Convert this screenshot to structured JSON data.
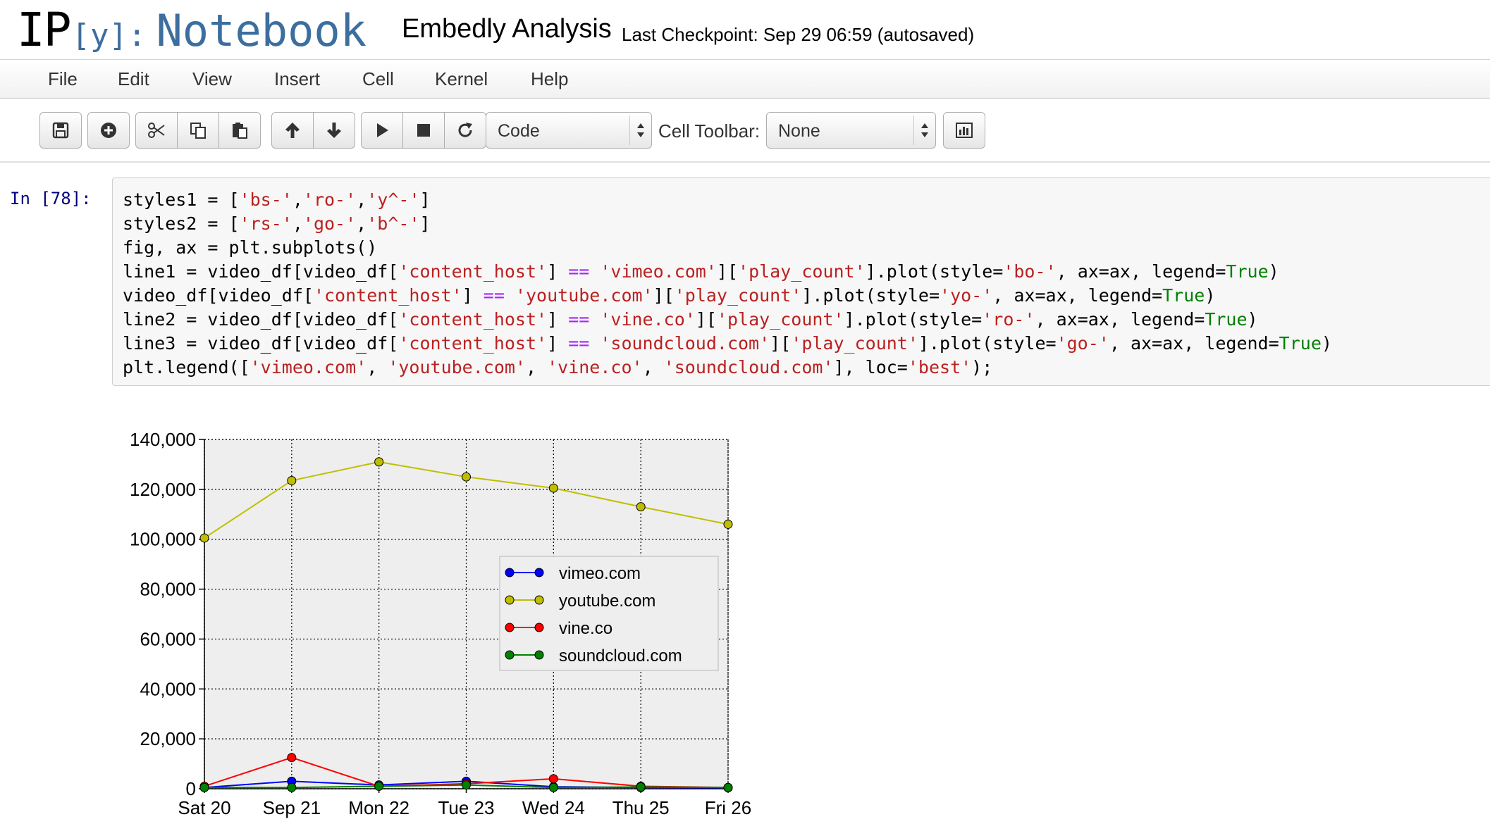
{
  "header": {
    "logo_ip": "IP",
    "logo_y": "[y]:",
    "logo_notebook": "Notebook",
    "notebook_name": "Embedly Analysis",
    "checkpoint": "Last Checkpoint: Sep 29 06:59 (autosaved)"
  },
  "menubar": {
    "items": [
      "File",
      "Edit",
      "View",
      "Insert",
      "Cell",
      "Kernel",
      "Help"
    ]
  },
  "toolbar": {
    "cell_type": "Code",
    "cell_toolbar_label": "Cell Toolbar:",
    "cell_toolbar_value": "None",
    "icons": [
      "save-icon",
      "plus-icon",
      "cut-icon",
      "copy-icon",
      "paste-icon",
      "arrow-up-icon",
      "arrow-down-icon",
      "play-icon",
      "stop-icon",
      "restart-icon",
      "bar-chart-icon"
    ]
  },
  "cell": {
    "prompt": "In [78]:",
    "code_lines": [
      "styles1 = ['bs-','ro-','y^-']",
      "styles2 = ['rs-','go-','b^-']",
      "fig, ax = plt.subplots()",
      "line1 = video_df[video_df['content_host'] == 'vimeo.com']['play_count'].plot(style='bo-', ax=ax, legend=True)",
      "video_df[video_df['content_host'] == 'youtube.com']['play_count'].plot(style='yo-', ax=ax, legend=True)",
      "line2 = video_df[video_df['content_host'] == 'vine.co']['play_count'].plot(style='ro-', ax=ax, legend=True)",
      "line3 = video_df[video_df['content_host'] == 'soundcloud.com']['play_count'].plot(style='go-', ax=ax, legend=True)",
      "plt.legend(['vimeo.com', 'youtube.com', 'vine.co', 'soundcloud.com'], loc='best');"
    ]
  },
  "chart_data": {
    "type": "line",
    "title": "",
    "xlabel": "",
    "ylabel": "",
    "categories": [
      "Sat 20",
      "Sep 21",
      "Mon 22",
      "Tue 23",
      "Wed 24",
      "Thu 25",
      "Fri 26"
    ],
    "yticks": [
      "0",
      "20,000",
      "40,000",
      "60,000",
      "80,000",
      "100,000",
      "120,000",
      "140,000"
    ],
    "ylim": [
      0,
      140000
    ],
    "grid": true,
    "legend_position": "center-right",
    "series": [
      {
        "name": "vimeo.com",
        "color": "#0000ff",
        "values": [
          500,
          3000,
          1500,
          3000,
          800,
          500,
          400
        ]
      },
      {
        "name": "youtube.com",
        "color": "#bfbf00",
        "values": [
          100500,
          123500,
          131000,
          125000,
          120500,
          113000,
          106000
        ]
      },
      {
        "name": "vine.co",
        "color": "#ff0000",
        "values": [
          1000,
          12500,
          1000,
          2000,
          4000,
          1000,
          500
        ]
      },
      {
        "name": "soundcloud.com",
        "color": "#008000",
        "values": [
          500,
          500,
          1000,
          1500,
          500,
          700,
          500
        ]
      }
    ]
  }
}
